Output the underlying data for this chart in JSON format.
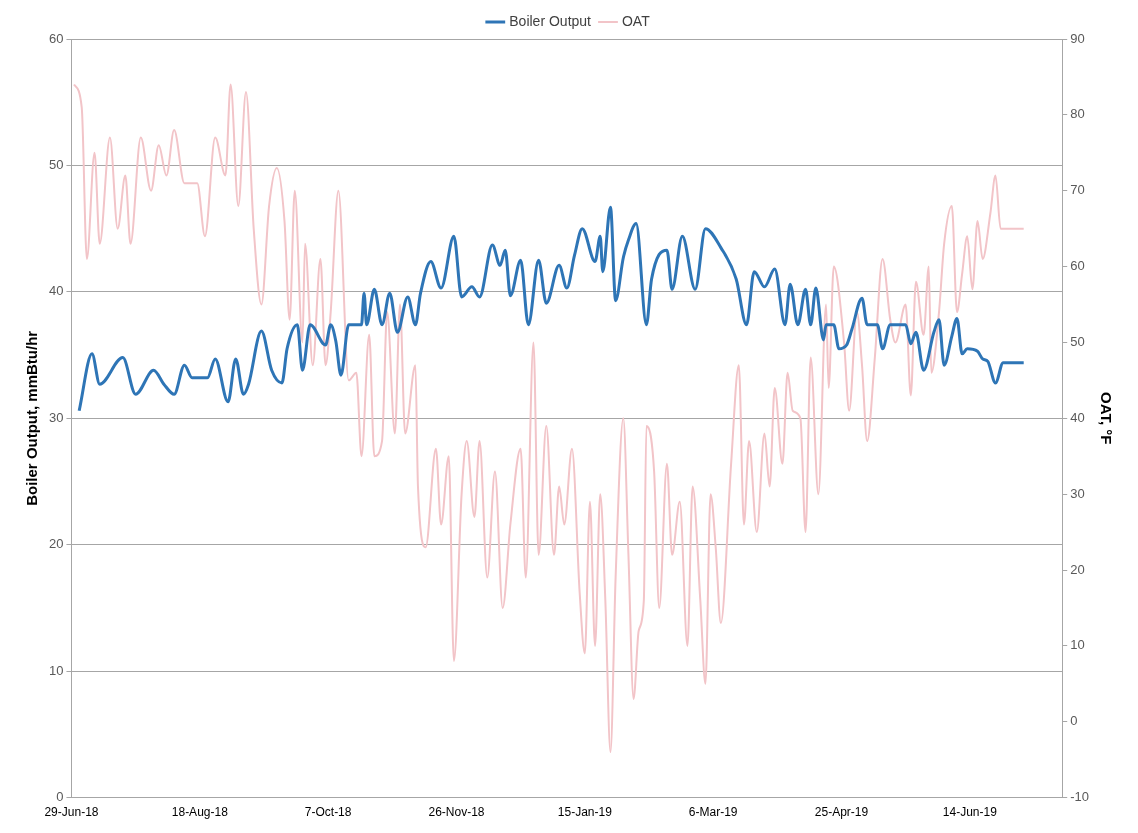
{
  "chart_data": {
    "type": "line",
    "ylabel": "Boiler Output, mmBtu/hr",
    "y2label": "OAT, °F",
    "legend": "top",
    "grid": "y",
    "xlim": [
      "2018-06-29",
      "2019-07-20"
    ],
    "xticks": [
      {
        "value": "2018-06-29",
        "label": "29-Jun-18"
      },
      {
        "value": "2018-08-18",
        "label": "18-Aug-18"
      },
      {
        "value": "2018-10-07",
        "label": "7-Oct-18"
      },
      {
        "value": "2018-11-26",
        "label": "26-Nov-18"
      },
      {
        "value": "2019-01-15",
        "label": "15-Jan-19"
      },
      {
        "value": "2019-03-06",
        "label": "6-Mar-19"
      },
      {
        "value": "2019-04-25",
        "label": "25-Apr-19"
      },
      {
        "value": "2019-06-14",
        "label": "14-Jun-19"
      }
    ],
    "ylim": [
      0,
      60
    ],
    "yticks": [
      0,
      10,
      20,
      30,
      40,
      50,
      60
    ],
    "y2lim": [
      -10,
      90
    ],
    "y2ticks": [
      -10,
      0,
      10,
      20,
      30,
      40,
      50,
      60,
      70,
      80,
      90
    ],
    "series": [
      {
        "name": "Boiler Output",
        "color": "#2e75b6",
        "x": [
          "2018-07-02",
          "2018-07-07",
          "2018-07-10",
          "2018-07-19",
          "2018-07-24",
          "2018-07-31",
          "2018-08-04",
          "2018-08-08",
          "2018-08-12",
          "2018-08-15",
          "2018-08-21",
          "2018-08-24",
          "2018-08-29",
          "2018-09-01",
          "2018-09-04",
          "2018-09-06",
          "2018-09-11",
          "2018-09-15",
          "2018-09-19",
          "2018-09-21",
          "2018-09-25",
          "2018-09-27",
          "2018-09-30",
          "2018-10-06",
          "2018-10-08",
          "2018-10-10",
          "2018-10-12",
          "2018-10-15",
          "2018-10-20",
          "2018-10-21",
          "2018-10-22",
          "2018-10-25",
          "2018-10-28",
          "2018-10-31",
          "2018-11-03",
          "2018-11-07",
          "2018-11-10",
          "2018-11-12",
          "2018-11-16",
          "2018-11-20",
          "2018-11-25",
          "2018-11-28",
          "2018-12-02",
          "2018-12-05",
          "2018-12-10",
          "2018-12-13",
          "2018-12-15",
          "2018-12-17",
          "2018-12-21",
          "2018-12-24",
          "2018-12-28",
          "2018-12-31",
          "2019-01-05",
          "2019-01-08",
          "2019-01-11",
          "2019-01-14",
          "2019-01-19",
          "2019-01-21",
          "2019-01-22",
          "2019-01-25",
          "2019-01-27",
          "2019-01-30",
          "2019-02-01",
          "2019-02-04",
          "2019-02-08",
          "2019-02-10",
          "2019-02-16",
          "2019-02-18",
          "2019-02-22",
          "2019-02-27",
          "2019-03-03",
          "2019-03-09",
          "2019-03-15",
          "2019-03-19",
          "2019-03-22",
          "2019-03-26",
          "2019-03-30",
          "2019-04-03",
          "2019-04-05",
          "2019-04-08",
          "2019-04-11",
          "2019-04-13",
          "2019-04-15",
          "2019-04-18",
          "2019-04-19",
          "2019-04-22",
          "2019-04-24",
          "2019-04-27",
          "2019-04-29",
          "2019-05-03",
          "2019-05-05",
          "2019-05-09",
          "2019-05-11",
          "2019-05-14",
          "2019-05-20",
          "2019-05-22",
          "2019-05-24",
          "2019-05-27",
          "2019-05-31",
          "2019-06-02",
          "2019-06-04",
          "2019-06-07",
          "2019-06-09",
          "2019-06-11",
          "2019-06-13",
          "2019-06-17",
          "2019-06-19",
          "2019-06-21",
          "2019-06-24",
          "2019-06-27",
          "2019-07-05"
        ],
        "values": [
          30.6,
          35.1,
          32.7,
          34.8,
          31.9,
          33.8,
          32.7,
          31.9,
          34.2,
          33.2,
          33.2,
          34.7,
          31.3,
          34.7,
          31.9,
          32.7,
          36.9,
          33.8,
          32.8,
          35.5,
          37.4,
          33.8,
          37.4,
          35.8,
          37.4,
          36.1,
          33.4,
          37.4,
          37.4,
          39.9,
          37.4,
          40.2,
          37.4,
          39.9,
          36.8,
          39.6,
          37.4,
          39.9,
          42.4,
          40.3,
          44.4,
          39.6,
          40.4,
          39.6,
          43.7,
          42.1,
          43.3,
          39.7,
          42.5,
          37.4,
          42.5,
          39.1,
          42.1,
          40.3,
          42.9,
          45.0,
          42.4,
          44.4,
          41.6,
          46.7,
          39.3,
          42.7,
          44.1,
          45.4,
          37.4,
          41.0,
          43.3,
          40.2,
          44.4,
          40.2,
          45.0,
          43.5,
          41.0,
          37.4,
          41.6,
          40.4,
          41.8,
          37.4,
          40.6,
          37.4,
          40.2,
          37.4,
          40.3,
          36.2,
          37.4,
          37.4,
          35.5,
          35.8,
          37.0,
          39.5,
          37.4,
          37.4,
          35.5,
          37.4,
          37.4,
          35.9,
          36.8,
          33.8,
          36.8,
          37.8,
          34.2,
          36.5,
          37.9,
          35.1,
          35.5,
          35.3,
          34.7,
          34.5,
          32.8,
          34.4,
          34.4
        ]
      },
      {
        "name": "OAT",
        "color": "#f2c4c8",
        "axis": "y2",
        "x": [
          "2018-06-30",
          "2018-07-03",
          "2018-07-05",
          "2018-07-08",
          "2018-07-10",
          "2018-07-14",
          "2018-07-17",
          "2018-07-20",
          "2018-07-22",
          "2018-07-26",
          "2018-07-30",
          "2018-08-02",
          "2018-08-05",
          "2018-08-08",
          "2018-08-12",
          "2018-08-17",
          "2018-08-20",
          "2018-08-24",
          "2018-08-28",
          "2018-08-30",
          "2018-09-02",
          "2018-09-05",
          "2018-09-08",
          "2018-09-11",
          "2018-09-14",
          "2018-09-17",
          "2018-09-20",
          "2018-09-22",
          "2018-09-24",
          "2018-09-27",
          "2018-09-28",
          "2018-10-01",
          "2018-10-04",
          "2018-10-06",
          "2018-10-08",
          "2018-10-11",
          "2018-10-15",
          "2018-10-18",
          "2018-10-20",
          "2018-10-23",
          "2018-10-25",
          "2018-10-28",
          "2018-10-30",
          "2018-11-02",
          "2018-11-04",
          "2018-11-06",
          "2018-11-10",
          "2018-11-11",
          "2018-11-14",
          "2018-11-18",
          "2018-11-20",
          "2018-11-23",
          "2018-11-25",
          "2018-11-28",
          "2018-11-30",
          "2018-12-03",
          "2018-12-05",
          "2018-12-08",
          "2018-12-11",
          "2018-12-14",
          "2018-12-17",
          "2018-12-21",
          "2018-12-23",
          "2018-12-26",
          "2018-12-28",
          "2018-12-31",
          "2019-01-03",
          "2019-01-05",
          "2019-01-07",
          "2019-01-10",
          "2019-01-13",
          "2019-01-15",
          "2019-01-17",
          "2019-01-19",
          "2019-01-21",
          "2019-01-23",
          "2019-01-25",
          "2019-01-27",
          "2019-01-30",
          "2019-02-01",
          "2019-02-03",
          "2019-02-05",
          "2019-02-07",
          "2019-02-08",
          "2019-02-11",
          "2019-02-13",
          "2019-02-16",
          "2019-02-18",
          "2019-02-21",
          "2019-02-24",
          "2019-02-26",
          "2019-03-01",
          "2019-03-03",
          "2019-03-05",
          "2019-03-07",
          "2019-03-09",
          "2019-03-13",
          "2019-03-16",
          "2019-03-18",
          "2019-03-20",
          "2019-03-23",
          "2019-03-26",
          "2019-03-28",
          "2019-03-30",
          "2019-04-02",
          "2019-04-04",
          "2019-04-06",
          "2019-04-09",
          "2019-04-11",
          "2019-04-13",
          "2019-04-16",
          "2019-04-19",
          "2019-04-20",
          "2019-04-22",
          "2019-04-26",
          "2019-04-28",
          "2019-05-01",
          "2019-05-03",
          "2019-05-05",
          "2019-05-08",
          "2019-05-11",
          "2019-05-14",
          "2019-05-16",
          "2019-05-20",
          "2019-05-22",
          "2019-05-24",
          "2019-05-27",
          "2019-05-29",
          "2019-05-30",
          "2019-06-02",
          "2019-06-04",
          "2019-06-07",
          "2019-06-09",
          "2019-06-11",
          "2019-06-13",
          "2019-06-15",
          "2019-06-17",
          "2019-06-19",
          "2019-06-22",
          "2019-06-24",
          "2019-06-26",
          "2019-06-28",
          "2019-07-05"
        ],
        "values": [
          84,
          81,
          61,
          75,
          63,
          77,
          65,
          72,
          63,
          77,
          70,
          76,
          72,
          78,
          71,
          71,
          64,
          77,
          72,
          84,
          68,
          83,
          65,
          55,
          68,
          73,
          66,
          53,
          70,
          50,
          63,
          47,
          61,
          47,
          54,
          70,
          45,
          46,
          35,
          51,
          35,
          37,
          54,
          38,
          55,
          38,
          47,
          31,
          23,
          36,
          26,
          35,
          8,
          30,
          37,
          27,
          37,
          19,
          33,
          15,
          26,
          36,
          19,
          50,
          22,
          39,
          22,
          31,
          26,
          36,
          17,
          9,
          29,
          10,
          30,
          16,
          -4,
          19,
          40,
          22,
          3,
          12,
          16,
          39,
          33,
          15,
          34,
          22,
          29,
          10,
          31,
          16,
          5,
          30,
          23,
          13,
          34,
          47,
          26,
          37,
          25,
          38,
          31,
          44,
          34,
          46,
          41,
          40,
          25,
          48,
          30,
          55,
          44,
          60,
          50,
          41,
          54,
          47,
          37,
          48,
          61,
          53,
          50,
          55,
          43,
          58,
          51,
          60,
          46,
          54,
          63,
          68,
          54,
          59,
          64,
          57,
          66,
          61,
          67,
          72,
          65,
          65,
          65
        ]
      }
    ]
  }
}
